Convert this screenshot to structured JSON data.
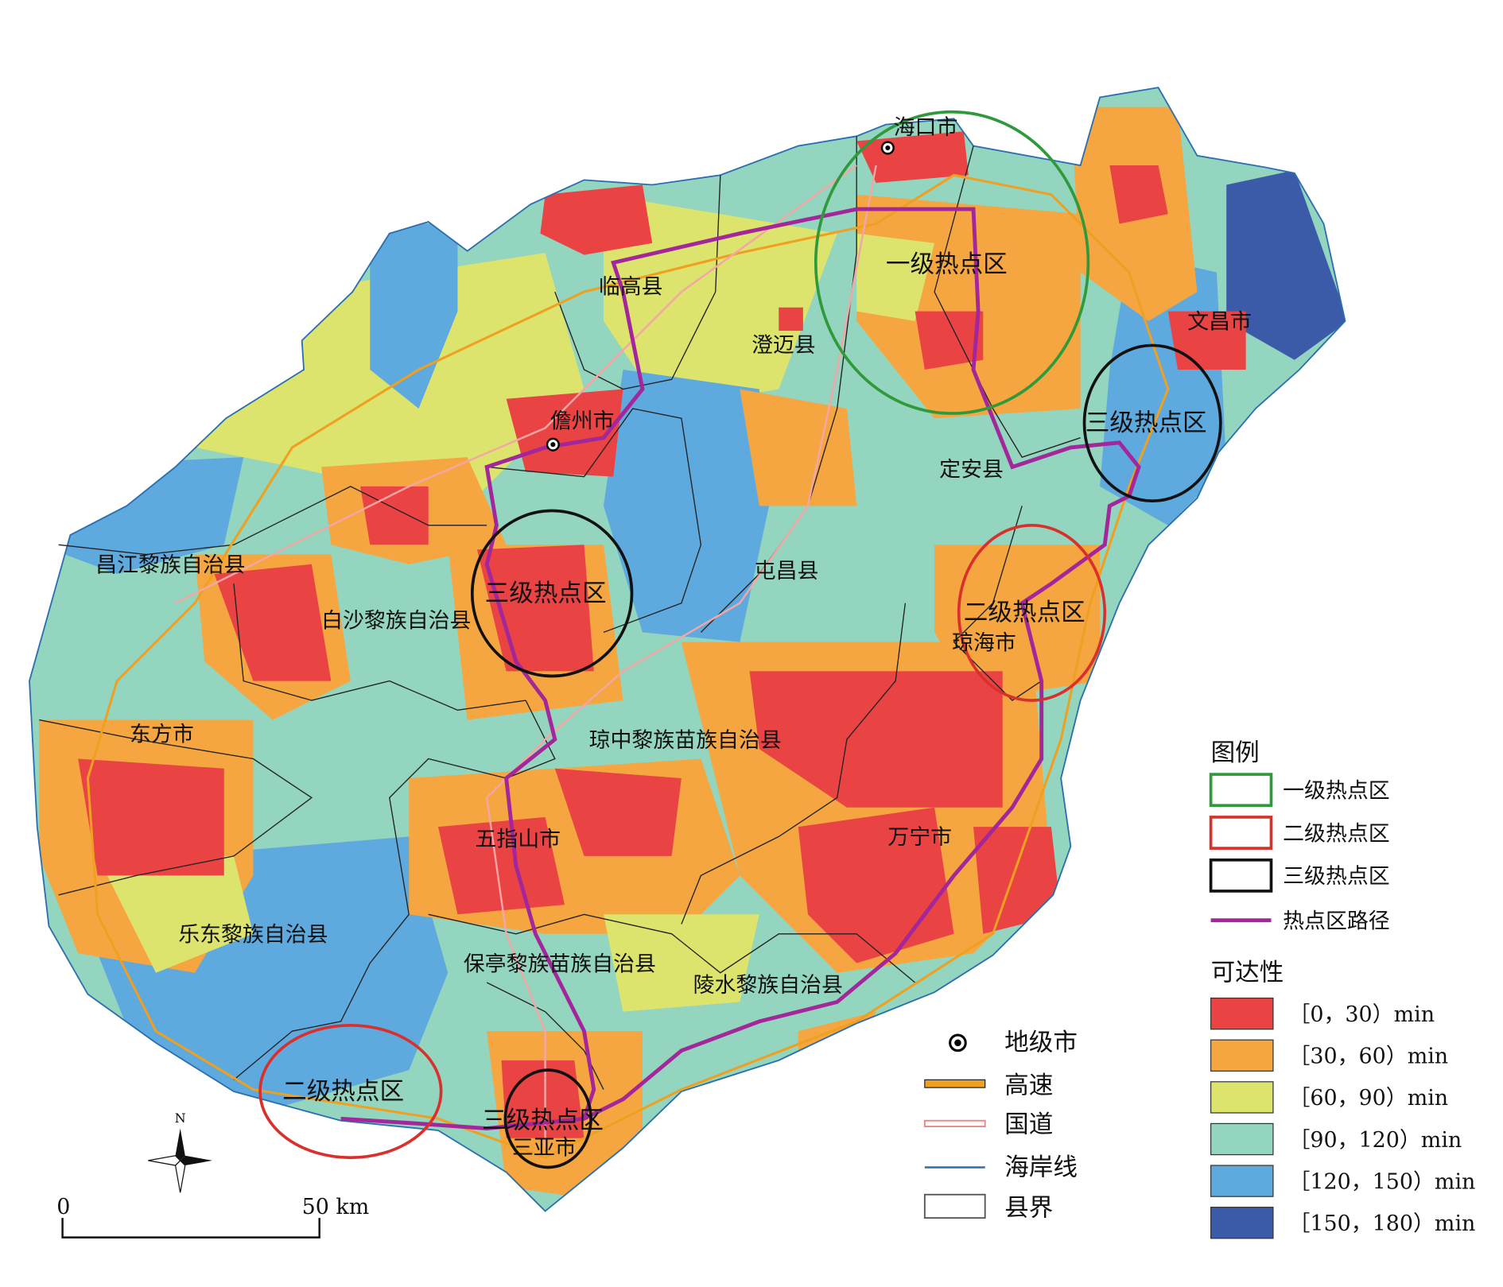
{
  "places": [
    "海口市",
    "临高县",
    "澄迈县",
    "儋州市",
    "文昌市",
    "定安县",
    "屯昌县",
    "昌江黎族自治县",
    "白沙黎族自治县",
    "琼海市",
    "东方市",
    "琼中黎族苗族自治县",
    "五指山市",
    "万宁市",
    "乐东黎族自治县",
    "保亭黎族苗族自治县",
    "陵水黎族自治县",
    "三亚市"
  ],
  "hotspot_labels": [
    "一级热点区",
    "三级热点区",
    "三级热点区",
    "二级热点区",
    "二级热点区",
    "三级热点区"
  ],
  "symbols": [
    "地级市",
    "高速",
    "国道",
    "海岸线",
    "县界"
  ],
  "legend": {
    "title": "图例",
    "items": [
      "一级热点区",
      "二级热点区",
      "三级热点区",
      "热点区路径"
    ]
  },
  "accessibility": {
    "title": "可达性",
    "classes": [
      "［0，30）min",
      "［30，60）min",
      "［60，90）min",
      "［90，120）min",
      "［120，150）min",
      "［150，180）min"
    ]
  },
  "scale": {
    "labels": [
      "0",
      "50 km"
    ]
  },
  "north": "N"
}
